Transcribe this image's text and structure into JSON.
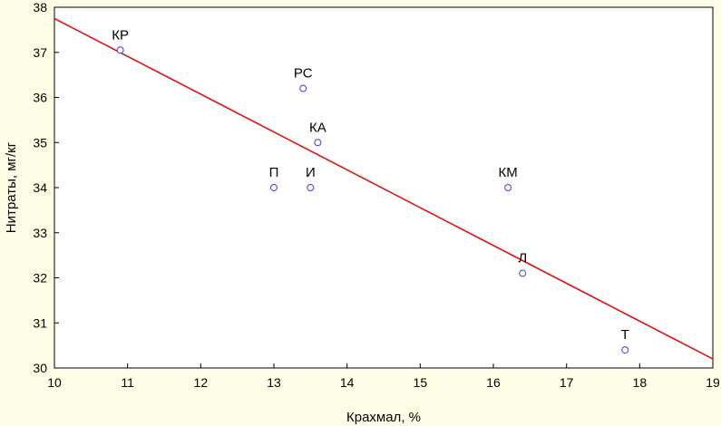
{
  "chart_data": {
    "type": "scatter",
    "xlabel": "Крахмал, %",
    "ylabel": "Нитраты, мг/кг",
    "xlim": [
      10,
      19
    ],
    "ylim": [
      30,
      38
    ],
    "x_ticks": [
      10,
      11,
      12,
      13,
      14,
      15,
      16,
      17,
      18,
      19
    ],
    "y_ticks": [
      30,
      31,
      32,
      33,
      34,
      35,
      36,
      37,
      38
    ],
    "grid": false,
    "points": [
      {
        "label": "КР",
        "x": 10.9,
        "y": 37.05
      },
      {
        "label": "РС",
        "x": 13.4,
        "y": 36.2
      },
      {
        "label": "КА",
        "x": 13.6,
        "y": 35.0
      },
      {
        "label": "П",
        "x": 13.0,
        "y": 34.0
      },
      {
        "label": "И",
        "x": 13.5,
        "y": 34.0
      },
      {
        "label": "КМ",
        "x": 16.2,
        "y": 34.0
      },
      {
        "label": "Л",
        "x": 16.4,
        "y": 32.1
      },
      {
        "label": "Т",
        "x": 17.8,
        "y": 30.4
      }
    ],
    "fit_line": {
      "x": [
        10,
        19
      ],
      "y": [
        37.75,
        30.2
      ]
    },
    "colors": {
      "background": "#ffffe8",
      "plot_area": "#ffffff",
      "marker": "#3344cc",
      "fit_line": "#e01010",
      "axis": "#000000"
    }
  }
}
